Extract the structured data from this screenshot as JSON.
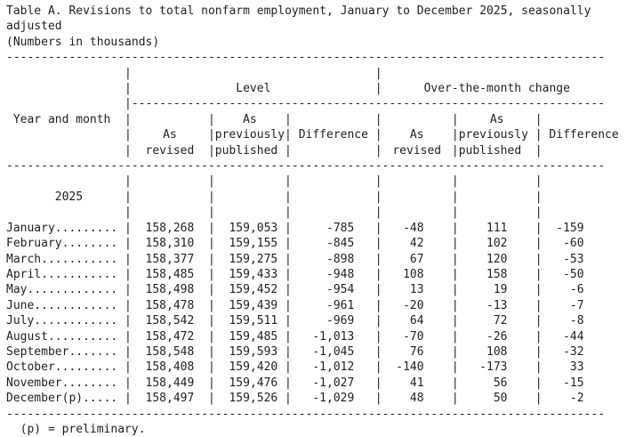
{
  "title": "Table A. Revisions to total nonfarm employment, January to December 2025, seasonally adjusted",
  "subtitle": "(Numbers in thousands)",
  "glyphs": {
    "pipe": "|"
  },
  "dividers": {
    "full": "--------------------------------------------------------------------------------------",
    "group": "--------------------------------------------------------------------"
  },
  "header": {
    "year_and_month": "Year and month",
    "level_group": "Level",
    "otm_group": "Over-the-month change",
    "as": "As",
    "revised": "revised",
    "previously": "previously",
    "published": "published",
    "difference": "Difference"
  },
  "body": {
    "year": "2025"
  },
  "rows": [
    {
      "label": "January.........",
      "values": [
        "158,268",
        "159,053",
        "-785",
        "-48",
        "111",
        "-159"
      ]
    },
    {
      "label": "February........",
      "values": [
        "158,310",
        "159,155",
        "-845",
        "42",
        "102",
        "-60"
      ]
    },
    {
      "label": "March...........",
      "values": [
        "158,377",
        "159,275",
        "-898",
        "67",
        "120",
        "-53"
      ]
    },
    {
      "label": "April...........",
      "values": [
        "158,485",
        "159,433",
        "-948",
        "108",
        "158",
        "-50"
      ]
    },
    {
      "label": "May.............",
      "values": [
        "158,498",
        "159,452",
        "-954",
        "13",
        "19",
        "-6"
      ]
    },
    {
      "label": "June............",
      "values": [
        "158,478",
        "159,439",
        "-961",
        "-20",
        "-13",
        "-7"
      ]
    },
    {
      "label": "July............",
      "values": [
        "158,542",
        "159,511",
        "-969",
        "64",
        "72",
        "-8"
      ]
    },
    {
      "label": "August..........",
      "values": [
        "158,472",
        "159,485",
        "-1,013",
        "-70",
        "-26",
        "-44"
      ]
    },
    {
      "label": "September.......",
      "values": [
        "158,548",
        "159,593",
        "-1,045",
        "76",
        "108",
        "-32"
      ]
    },
    {
      "label": "October.........",
      "values": [
        "158,408",
        "159,420",
        "-1,012",
        "-140",
        "-173",
        "33"
      ]
    },
    {
      "label": "November........",
      "values": [
        "158,449",
        "159,476",
        "-1,027",
        "41",
        "56",
        "-15"
      ]
    },
    {
      "label": "December(p).....",
      "values": [
        "158,497",
        "159,526",
        "-1,029",
        "48",
        "50",
        "-2"
      ]
    }
  ],
  "footnote": "(p) = preliminary.",
  "colors": {
    "text": "#1f1f1f",
    "background": "#ffffff"
  }
}
